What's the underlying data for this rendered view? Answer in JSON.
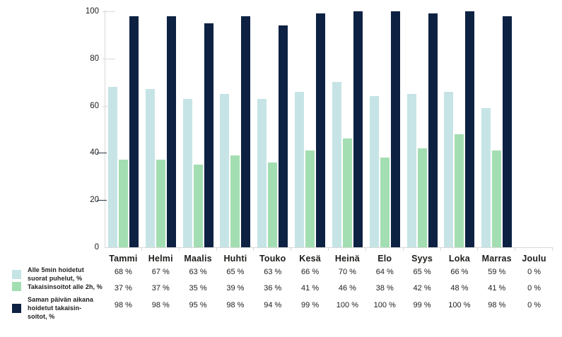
{
  "colors": {
    "direct_calls": "#c6e4e6",
    "callbacks_2h": "#a3deb2",
    "same_day_callbacks": "#0d2142",
    "axis": "#d9d9d9",
    "text": "#1d1d1b"
  },
  "chart_data": {
    "type": "bar",
    "title": "",
    "xlabel": "",
    "ylabel": "",
    "ylim": [
      0,
      100
    ],
    "y_ticks": [
      0,
      20,
      40,
      60,
      80,
      100
    ],
    "grid": false,
    "legend_position": "bottom-left",
    "value_suffix": " %",
    "categories": [
      "Tammi",
      "Helmi",
      "Maalis",
      "Huhti",
      "Touko",
      "Kesä",
      "Heinä",
      "Elo",
      "Syys",
      "Loka",
      "Marras",
      "Joulu"
    ],
    "series": [
      {
        "name": "Alle 5min hoidetut suorat puhelut, %",
        "color_key": "direct_calls",
        "values": [
          68,
          67,
          63,
          65,
          63,
          66,
          70,
          64,
          65,
          66,
          59,
          0
        ]
      },
      {
        "name": "Takaisinsoitot alle 2h, %",
        "color_key": "callbacks_2h",
        "values": [
          37,
          37,
          35,
          39,
          36,
          41,
          46,
          38,
          42,
          48,
          41,
          0
        ]
      },
      {
        "name": "Saman päivän aikana hoidetut takaisinsoitot, %",
        "color_key": "same_day_callbacks",
        "values": [
          98,
          98,
          95,
          98,
          94,
          99,
          100,
          100,
          99,
          100,
          98,
          0
        ]
      }
    ]
  },
  "legend": {
    "rows": [
      {
        "label_lines": [
          "Alle 5min hoidetut",
          "suorat puhelut, %"
        ]
      },
      {
        "label_lines": [
          "Takaisinsoitot alle 2h, %"
        ]
      },
      {
        "label_lines": [
          "Saman päivän aikana",
          "hoidetut takaisin-",
          "soitot, %"
        ]
      }
    ]
  }
}
